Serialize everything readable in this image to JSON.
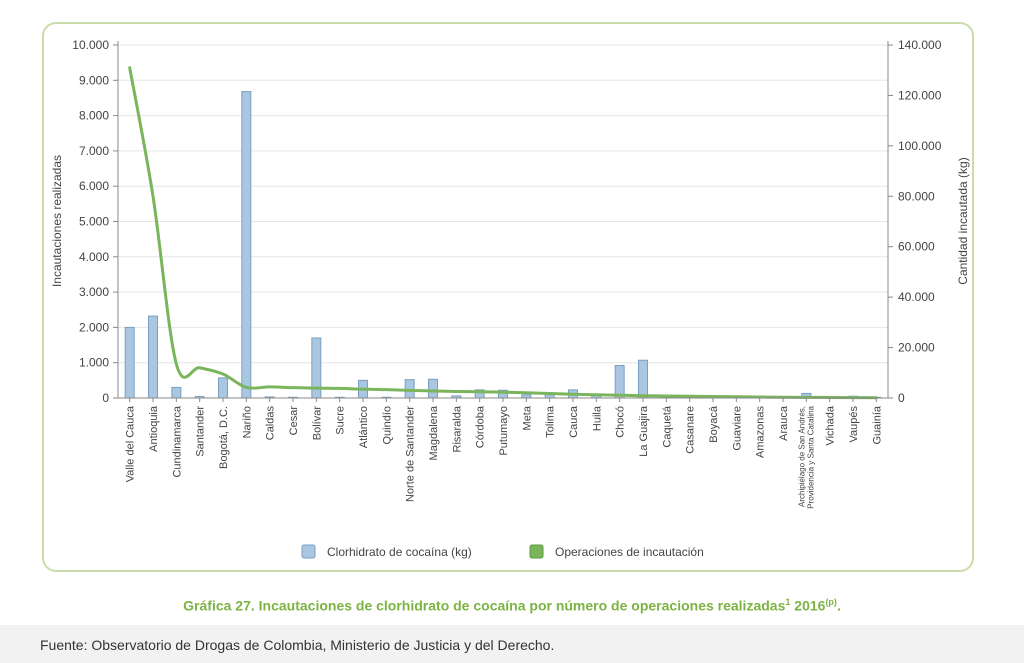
{
  "caption": {
    "label": "Gráfica 27. Incautaciones de clorhidrato de cocaína por número de operaciones realizadas",
    "sup1": "1",
    "year": "2016",
    "sup2": "(p)",
    "end": "."
  },
  "source": "Fuente: Observatorio de Drogas de Colombia, Ministerio de Justicia y del Derecho.",
  "chart_data": {
    "type": "bar",
    "categories": [
      "Valle del Cauca",
      "Antioquia",
      "Cundinamarca",
      "Santander",
      "Bogotá, D.C.",
      "Nariño",
      "Caldas",
      "Cesar",
      "Bolívar",
      "Sucre",
      "Atlántico",
      "Quindío",
      "Norte de Santander",
      "Magdalena",
      "Risaralda",
      "Córdoba",
      "Putumayo",
      "Meta",
      "Tolima",
      "Cauca",
      "Huila",
      "Chocó",
      "La Guajira",
      "Caquetá",
      "Casanare",
      "Boyacá",
      "Guaviare",
      "Amazonas",
      "Arauca",
      "Archipiélago de San Andrés, Providencia y Santa Catalina",
      "Vichada",
      "Vaupés",
      "Guainía"
    ],
    "category_lines": [
      [
        "Valle del Cauca"
      ],
      [
        "Antioquia"
      ],
      [
        "Cundinamarca"
      ],
      [
        "Santander"
      ],
      [
        "Bogotá, D.C."
      ],
      [
        "Nariño"
      ],
      [
        "Caldas"
      ],
      [
        "Cesar"
      ],
      [
        "Bolívar"
      ],
      [
        "Sucre"
      ],
      [
        "Atlántico"
      ],
      [
        "Quindío"
      ],
      [
        "Norte de Santander"
      ],
      [
        "Magdalena"
      ],
      [
        "Risaralda"
      ],
      [
        "Córdoba"
      ],
      [
        "Putumayo"
      ],
      [
        "Meta"
      ],
      [
        "Tolima"
      ],
      [
        "Cauca"
      ],
      [
        "Huila"
      ],
      [
        "Chocó"
      ],
      [
        "La Guajira"
      ],
      [
        "Caquetá"
      ],
      [
        "Casanare"
      ],
      [
        "Boyacá"
      ],
      [
        "Guaviare"
      ],
      [
        "Amazonas"
      ],
      [
        "Arauca"
      ],
      [
        "Archipiélago de San Andrés,",
        "Providencia y Santa Catalina"
      ],
      [
        "Vichada"
      ],
      [
        "Vaupés"
      ],
      [
        "Guainía"
      ]
    ],
    "series": [
      {
        "name": "Clorhidrato de cocaína (kg)",
        "axis": "left",
        "kind": "bar",
        "color": "#a9c7e0",
        "stroke": "#7a9fc0",
        "values": [
          2000,
          2320,
          300,
          40,
          570,
          8680,
          30,
          20,
          1700,
          20,
          500,
          20,
          520,
          530,
          60,
          230,
          220,
          90,
          90,
          230,
          70,
          920,
          1070,
          80,
          60,
          40,
          30,
          20,
          20,
          130,
          40,
          50,
          20
        ]
      },
      {
        "name": "Operaciones de incautación",
        "axis": "right",
        "kind": "line",
        "color": "#7ab55c",
        "values": [
          131000,
          80000,
          13500,
          12000,
          9500,
          4200,
          4400,
          4100,
          3900,
          3800,
          3500,
          3300,
          3000,
          2800,
          2600,
          2500,
          2300,
          2100,
          1800,
          1500,
          1300,
          1100,
          900,
          800,
          700,
          600,
          500,
          400,
          300,
          250,
          200,
          150,
          100
        ]
      }
    ],
    "left_axis": {
      "label": "Incautaciones realizadas",
      "min": 0,
      "max": 10000,
      "ticks": [
        "0",
        "1.000",
        "2.000",
        "3.000",
        "4.000",
        "5.000",
        "6.000",
        "7.000",
        "8.000",
        "9.000",
        "10.000"
      ]
    },
    "right_axis": {
      "label": "Cantidad incautada (kg)",
      "min": 0,
      "max": 140000,
      "ticks": [
        "0",
        "20.000",
        "40.000",
        "60.000",
        "80.000",
        "100.000",
        "120.000",
        "140.000"
      ]
    },
    "grid": true,
    "legend_position": "bottom"
  }
}
